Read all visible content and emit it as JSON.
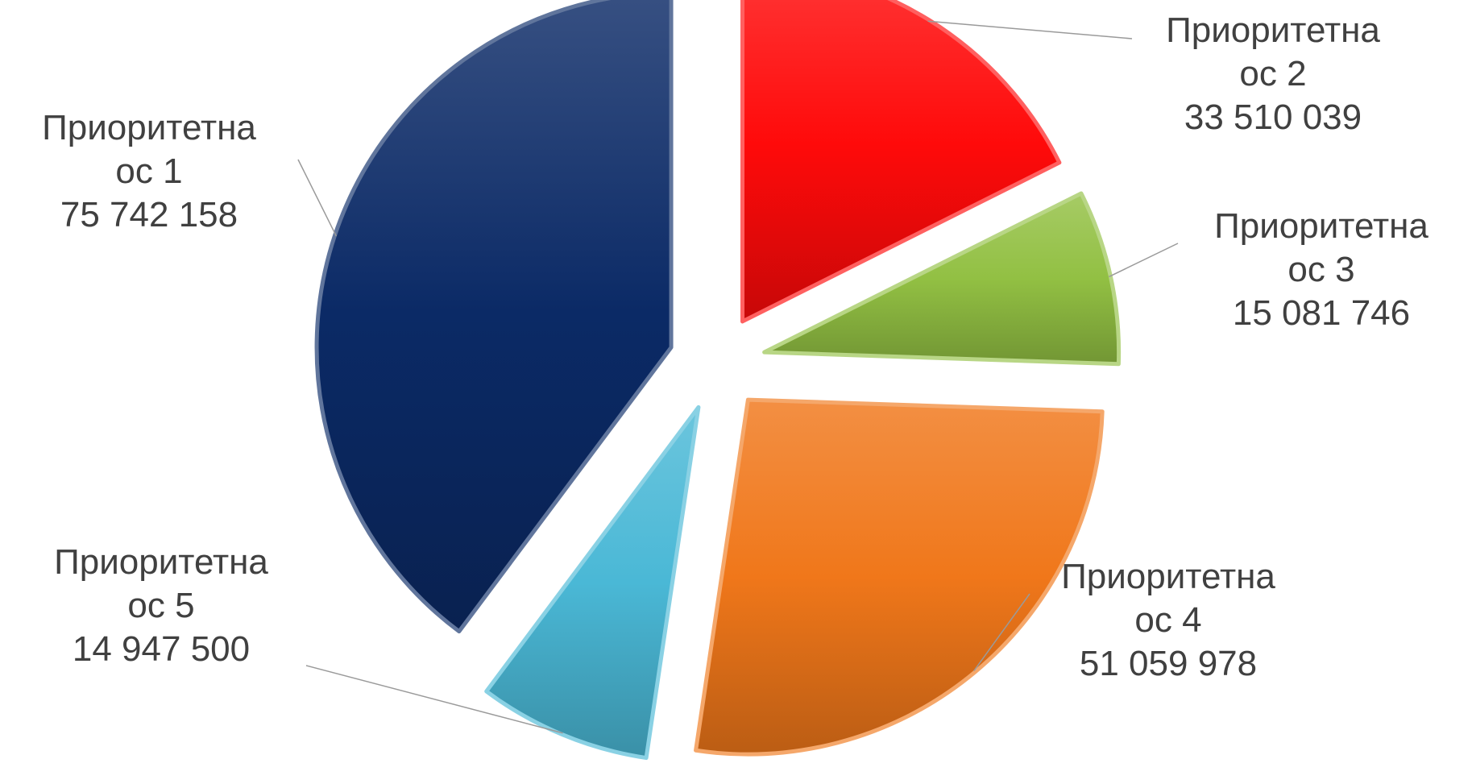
{
  "chart_data": {
    "type": "pie",
    "exploded": true,
    "categories": [
      "Приоритетна ос 2",
      "Приоритетна ос 3",
      "Приоритетна ос 4",
      "Приоритетна ос 5",
      "Приоритетна ос 1"
    ],
    "values": [
      33510039,
      15081746,
      51059978,
      14947500,
      75742158
    ],
    "value_labels": [
      "33 510 039",
      "15 081 746",
      "51 059 978",
      "14 947 500",
      "75 742 158"
    ],
    "label_lines": [
      [
        "Приоритетна",
        "ос 2"
      ],
      [
        "Приоритетна",
        "ос 3"
      ],
      [
        "Приоритетна",
        "ос 4"
      ],
      [
        "Приоритетна",
        "ос 5"
      ],
      [
        "Приоритетна",
        "ос 1"
      ]
    ],
    "colors": [
      "#ff0a0a",
      "#92c043",
      "#f0771a",
      "#4ab8d6",
      "#0b2a66"
    ],
    "start_angle_deg": 0,
    "direction": "clockwise"
  }
}
